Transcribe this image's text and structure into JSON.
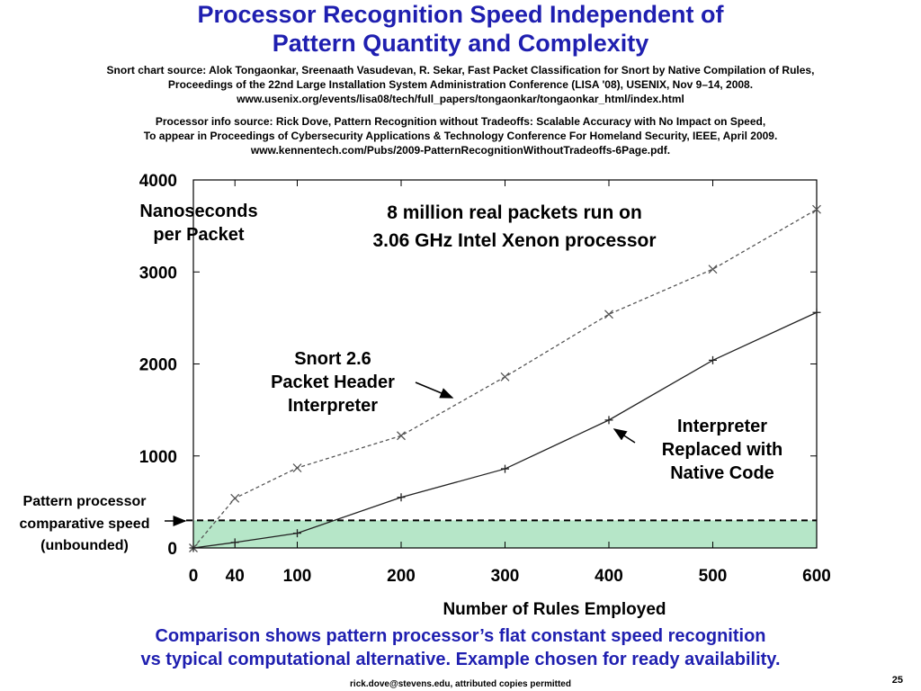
{
  "title": {
    "line1": "Processor Recognition Speed Independent of",
    "line2": "Pattern Quantity and Complexity"
  },
  "snort_source": {
    "line1": "Snort chart source: Alok Tongaonkar, Sreenaath Vasudevan, R. Sekar, Fast Packet Classification for Snort by Native Compilation of Rules,",
    "line2": "Proceedings of the 22nd Large Installation System Administration Conference (LISA '08), USENIX, Nov 9–14, 2008.",
    "line3": "www.usenix.org/events/lisa08/tech/full_papers/tongaonkar/tongaonkar_html/index.html"
  },
  "processor_source": {
    "line1": "Processor info source: Rick Dove, Pattern Recognition without Tradeoffs: Scalable Accuracy with No Impact on Speed,",
    "line2": "To appear in Proceedings of Cybersecurity Applications & Technology Conference For Homeland Security, IEEE, April 2009.",
    "line3": "www.kennentech.com/Pubs/2009-PatternRecognitionWithoutTradeoffs-6Page.pdf."
  },
  "chart_data": {
    "type": "line",
    "ylabel": [
      "Nanoseconds",
      "per Packet"
    ],
    "xlabel": "Number of Rules Employed",
    "xlim": [
      0,
      600
    ],
    "ylim": [
      0,
      4000
    ],
    "x_ticks": [
      0,
      40,
      100,
      200,
      300,
      400,
      500,
      600
    ],
    "y_ticks": [
      0,
      1000,
      2000,
      3000,
      4000
    ],
    "series": [
      {
        "x": [
          0,
          40,
          100,
          200,
          300,
          400,
          500,
          600
        ],
        "y": [
          0,
          540,
          870,
          1220,
          1860,
          2540,
          3030,
          3680
        ],
        "style": "dashed",
        "marker": "x",
        "color": "#555555"
      },
      {
        "x": [
          0,
          40,
          100,
          200,
          300,
          400,
          500,
          600
        ],
        "y": [
          0,
          60,
          160,
          550,
          860,
          1390,
          2040,
          2560
        ],
        "style": "solid",
        "marker": "+",
        "color": "#222222"
      }
    ],
    "reference_band": {
      "y": 300,
      "fill": "#b6e6c8",
      "line_color": "#000000"
    },
    "annotations": {
      "run_note": [
        "8 million real packets run on",
        "3.06 GHz Intel Xenon processor"
      ],
      "snort": [
        "Snort 2.6",
        "Packet Header",
        "Interpreter"
      ],
      "native": [
        "Interpreter",
        "Replaced with",
        "Native Code"
      ],
      "pattern_processor": [
        "Pattern processor",
        "comparative speed",
        "(unbounded)"
      ]
    }
  },
  "bottom_text": {
    "line1": "Comparison shows pattern processor’s flat constant speed recognition",
    "line2": "vs typical computational alternative. Example chosen for ready availability."
  },
  "footer": "rick.dove@stevens.edu, attributed copies permitted",
  "page_number": "25"
}
